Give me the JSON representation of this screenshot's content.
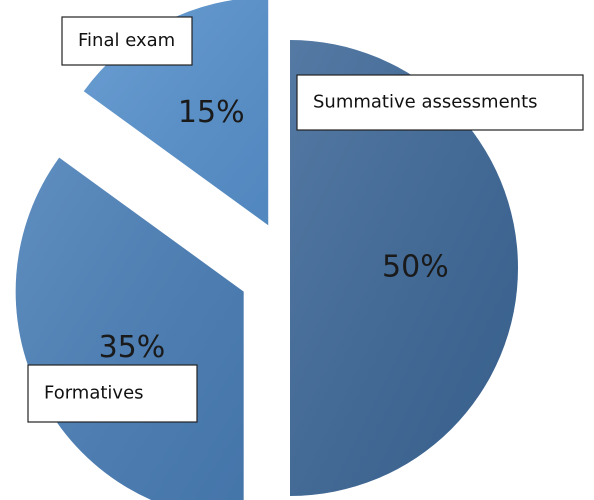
{
  "chart_data": {
    "type": "pie",
    "categories": [
      "Summative assessments",
      "Formatives",
      "Final exam"
    ],
    "values": [
      50,
      35,
      15
    ],
    "value_labels": [
      "50%",
      "35%",
      "15%"
    ],
    "colors": [
      "#3d6898",
      "#4a7fb8",
      "#5893cf"
    ]
  }
}
